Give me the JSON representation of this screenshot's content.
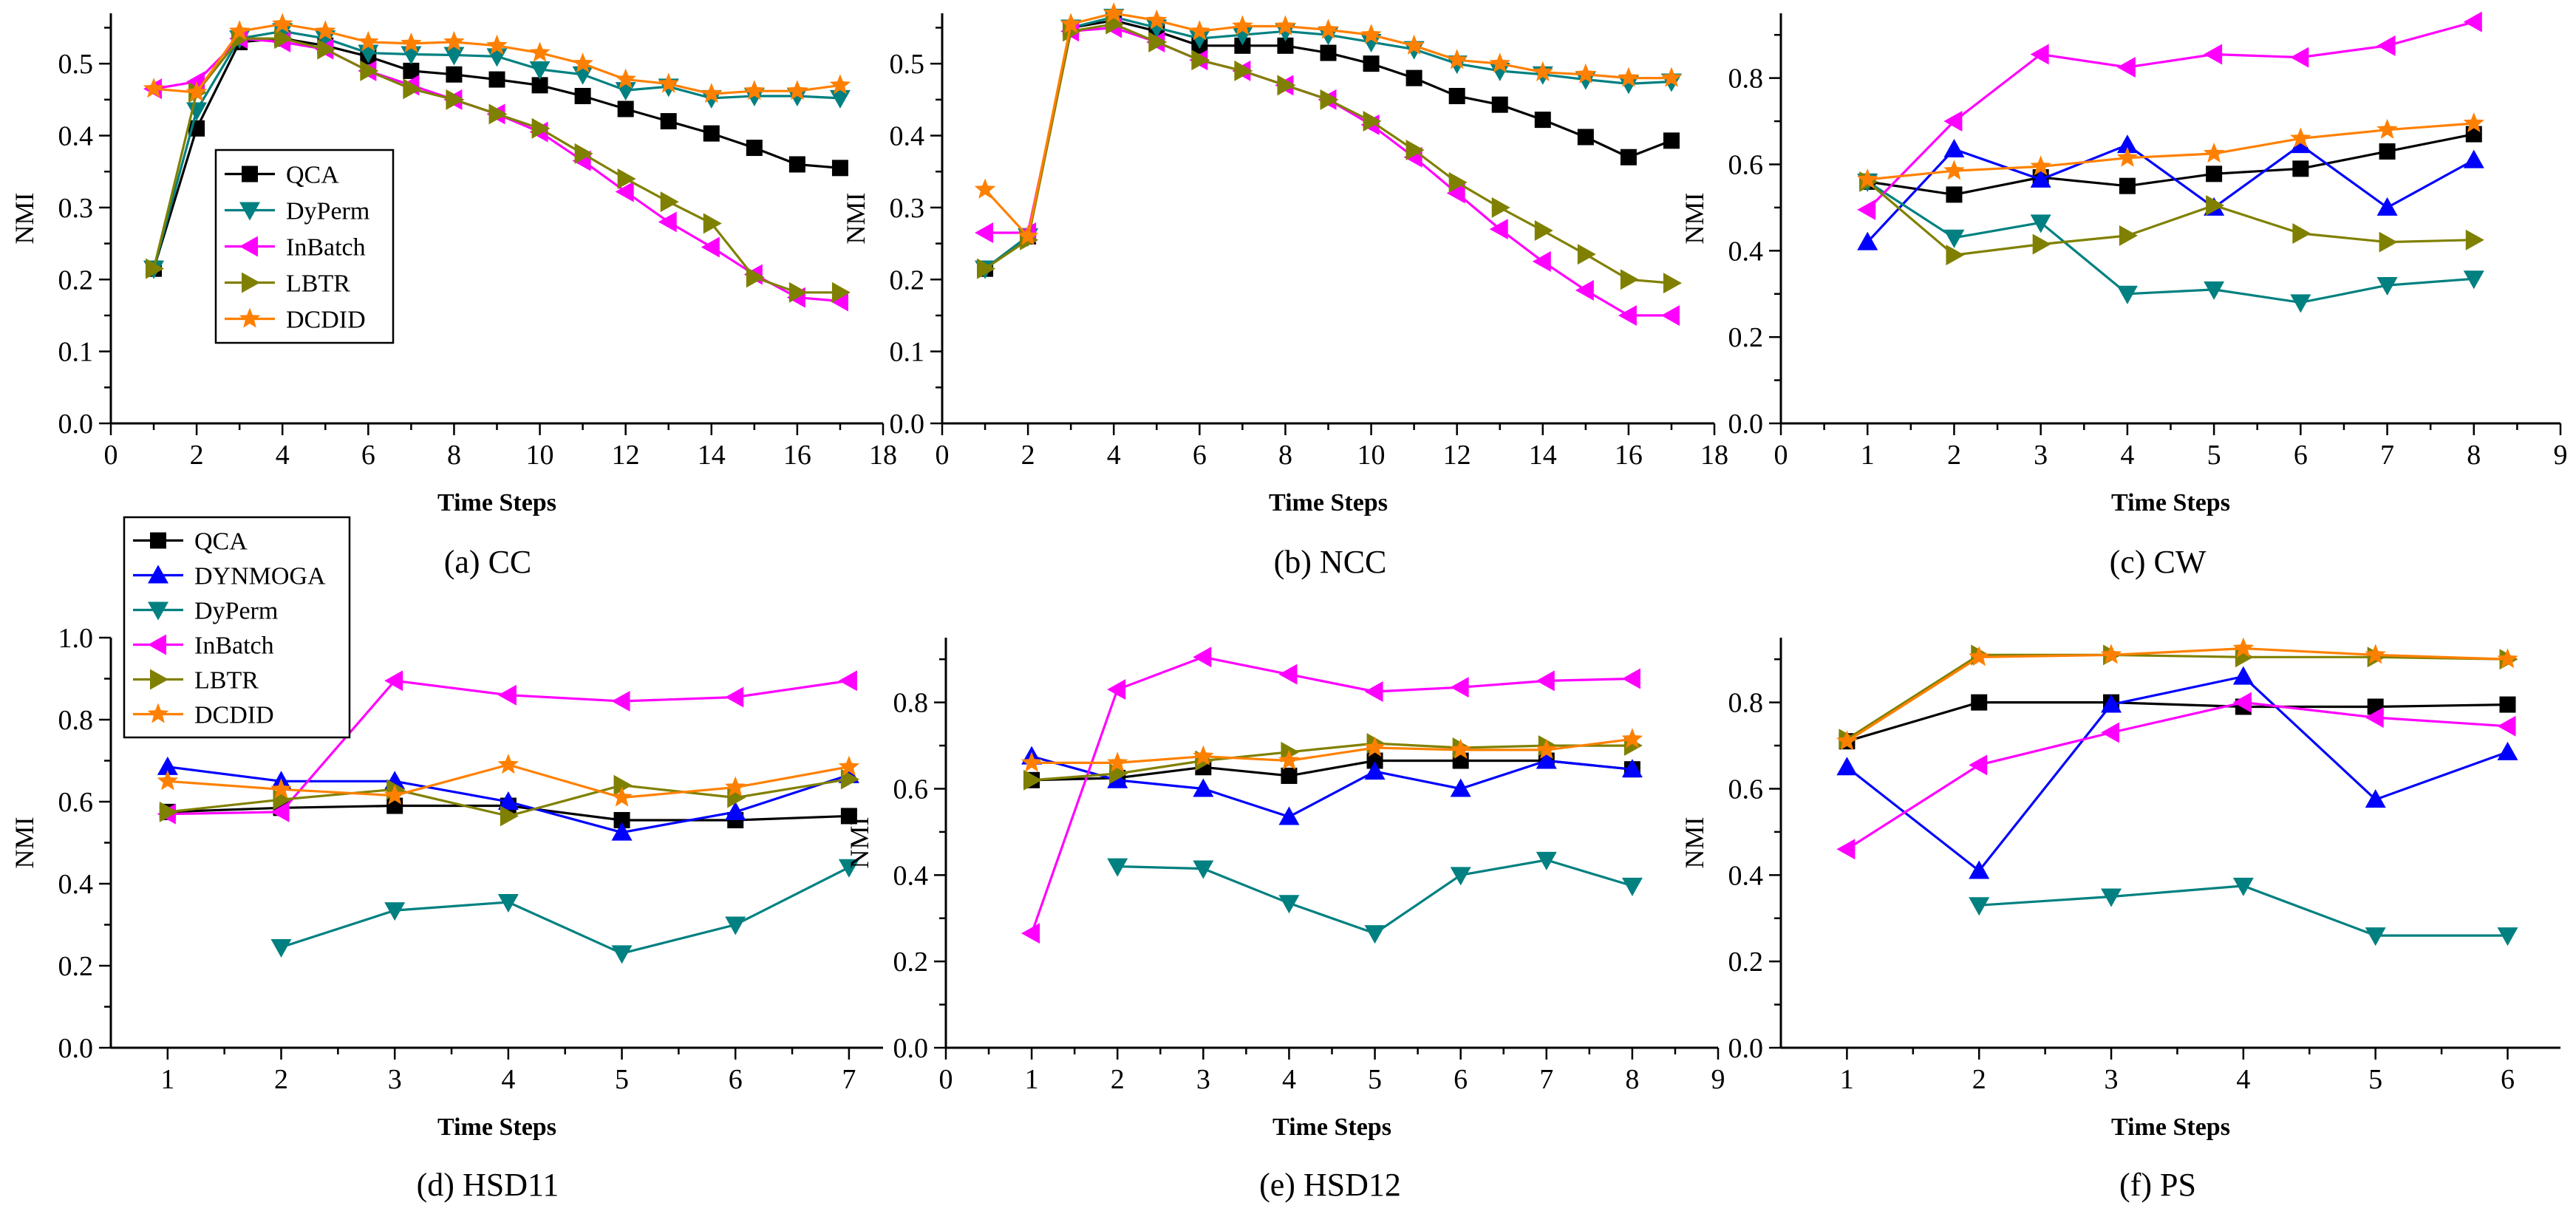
{
  "series_styles": {
    "QCA": {
      "color": "#000000",
      "marker": "square"
    },
    "DYNMOGA": {
      "color": "#0000ff",
      "marker": "triangle-up"
    },
    "DyPerm": {
      "color": "#008080",
      "marker": "triangle-down"
    },
    "InBatch": {
      "color": "#ff00ff",
      "marker": "triangle-left"
    },
    "LBTR": {
      "color": "#808000",
      "marker": "triangle-right"
    },
    "DCDID": {
      "color": "#ff8000",
      "marker": "star"
    }
  },
  "chart_data": [
    {
      "type": "line",
      "caption": "(a) CC",
      "xlabel": "Time Steps",
      "ylabel": "NMI",
      "xlim": [
        0,
        18
      ],
      "ylim": [
        0,
        0.57
      ],
      "xticks": [
        0,
        2,
        4,
        6,
        8,
        10,
        12,
        14,
        16,
        18
      ],
      "yticks": [
        0.0,
        0.1,
        0.2,
        0.3,
        0.4,
        0.5
      ],
      "x": [
        1,
        2,
        3,
        4,
        5,
        6,
        7,
        8,
        9,
        10,
        11,
        12,
        13,
        14,
        15,
        16,
        17
      ],
      "legend": {
        "placement": "inside-left",
        "entries": [
          "QCA",
          "DyPerm",
          "InBatch",
          "LBTR",
          "DCDID"
        ]
      },
      "series": [
        {
          "name": "QCA",
          "values": [
            0.215,
            0.41,
            0.53,
            0.535,
            0.525,
            0.51,
            0.49,
            0.485,
            0.478,
            0.47,
            0.455,
            0.437,
            0.42,
            0.403,
            0.383,
            0.36,
            0.355
          ]
        },
        {
          "name": "DyPerm",
          "values": [
            0.215,
            0.435,
            0.535,
            0.545,
            0.535,
            0.515,
            0.513,
            0.512,
            0.51,
            0.492,
            0.485,
            0.463,
            0.468,
            0.452,
            0.455,
            0.455,
            0.452
          ]
        },
        {
          "name": "InBatch",
          "values": [
            0.465,
            0.475,
            0.535,
            0.53,
            0.52,
            0.49,
            0.47,
            0.45,
            0.43,
            0.405,
            0.365,
            0.322,
            0.28,
            0.245,
            0.207,
            0.175,
            0.17
          ]
        },
        {
          "name": "LBTR",
          "values": [
            0.215,
            0.46,
            0.535,
            0.535,
            0.52,
            0.49,
            0.465,
            0.45,
            0.43,
            0.41,
            0.375,
            0.34,
            0.308,
            0.278,
            0.203,
            0.182,
            0.182
          ]
        },
        {
          "name": "DCDID",
          "values": [
            0.465,
            0.46,
            0.545,
            0.555,
            0.545,
            0.53,
            0.528,
            0.53,
            0.525,
            0.515,
            0.5,
            0.478,
            0.472,
            0.458,
            0.462,
            0.462,
            0.47
          ]
        }
      ]
    },
    {
      "type": "line",
      "caption": "(b) NCC",
      "xlabel": "Time Steps",
      "ylabel": "NMI",
      "xlim": [
        0,
        18
      ],
      "ylim": [
        0,
        0.57
      ],
      "xticks": [
        0,
        2,
        4,
        6,
        8,
        10,
        12,
        14,
        16,
        18
      ],
      "yticks": [
        0.0,
        0.1,
        0.2,
        0.3,
        0.4,
        0.5
      ],
      "x": [
        1,
        2,
        3,
        4,
        5,
        6,
        7,
        8,
        9,
        10,
        11,
        12,
        13,
        14,
        15,
        16,
        17
      ],
      "series": [
        {
          "name": "QCA",
          "values": [
            0.215,
            0.26,
            0.55,
            0.56,
            0.545,
            0.525,
            0.525,
            0.525,
            0.515,
            0.5,
            0.48,
            0.455,
            0.443,
            0.422,
            0.398,
            0.37,
            0.393
          ]
        },
        {
          "name": "DyPerm",
          "values": [
            0.215,
            0.26,
            0.55,
            0.565,
            0.55,
            0.535,
            0.54,
            0.545,
            0.54,
            0.53,
            0.52,
            0.5,
            0.49,
            0.485,
            0.478,
            0.472,
            0.475
          ]
        },
        {
          "name": "InBatch",
          "values": [
            0.265,
            0.265,
            0.545,
            0.55,
            0.53,
            0.505,
            0.49,
            0.47,
            0.45,
            0.415,
            0.37,
            0.32,
            0.27,
            0.225,
            0.185,
            0.15,
            0.15
          ]
        },
        {
          "name": "LBTR",
          "values": [
            0.215,
            0.255,
            0.545,
            0.555,
            0.53,
            0.505,
            0.49,
            0.47,
            0.45,
            0.42,
            0.38,
            0.335,
            0.3,
            0.268,
            0.235,
            0.2,
            0.195
          ]
        },
        {
          "name": "DCDID",
          "values": [
            0.325,
            0.26,
            0.555,
            0.57,
            0.56,
            0.545,
            0.552,
            0.552,
            0.547,
            0.54,
            0.525,
            0.505,
            0.5,
            0.488,
            0.485,
            0.48,
            0.48
          ]
        }
      ]
    },
    {
      "type": "line",
      "caption": "(c) CW",
      "xlabel": "Time Steps",
      "ylabel": "NMI",
      "xlim": [
        0,
        9
      ],
      "ylim": [
        0,
        0.95
      ],
      "xticks": [
        0,
        1,
        2,
        3,
        4,
        5,
        6,
        7,
        8,
        9
      ],
      "yticks": [
        0.0,
        0.2,
        0.4,
        0.6,
        0.8
      ],
      "x": [
        1,
        2,
        3,
        4,
        5,
        6,
        7,
        8
      ],
      "series": [
        {
          "name": "QCA",
          "values": [
            0.56,
            0.53,
            0.57,
            0.55,
            0.578,
            0.59,
            0.63,
            0.67
          ]
        },
        {
          "name": "DYNMOGA",
          "values": [
            0.42,
            0.635,
            0.565,
            0.645,
            0.5,
            0.645,
            0.5,
            0.61
          ]
        },
        {
          "name": "DyPerm",
          "values": [
            0.56,
            0.43,
            0.465,
            0.3,
            0.31,
            0.28,
            0.32,
            0.335
          ]
        },
        {
          "name": "InBatch",
          "values": [
            0.495,
            0.7,
            0.855,
            0.825,
            0.855,
            0.848,
            0.875,
            0.93
          ]
        },
        {
          "name": "LBTR",
          "values": [
            0.56,
            0.39,
            0.415,
            0.435,
            0.505,
            0.44,
            0.42,
            0.425
          ]
        },
        {
          "name": "DCDID",
          "values": [
            0.565,
            0.585,
            0.595,
            0.615,
            0.625,
            0.66,
            0.68,
            0.695
          ]
        }
      ]
    },
    {
      "type": "line",
      "caption": "(d) HSD11",
      "xlabel": "Time Steps",
      "ylabel": "NMI",
      "xlim": [
        0.5,
        7.3
      ],
      "ylim": [
        0,
        1.0
      ],
      "xticks": [
        1,
        2,
        3,
        4,
        5,
        6,
        7
      ],
      "yticks": [
        0.0,
        0.2,
        0.4,
        0.6,
        0.8,
        1.0
      ],
      "x": [
        1,
        2,
        3,
        4,
        5,
        6,
        7
      ],
      "legend": {
        "placement": "top-left",
        "entries": [
          "QCA",
          "DYNMOGA",
          "DyPerm",
          "InBatch",
          "LBTR",
          "DCDID"
        ]
      },
      "series": [
        {
          "name": "QCA",
          "values": [
            0.575,
            0.585,
            0.59,
            0.59,
            0.555,
            0.555,
            0.565
          ]
        },
        {
          "name": "DYNMOGA",
          "values": [
            0.685,
            0.65,
            0.65,
            0.6,
            0.525,
            0.575,
            0.665
          ]
        },
        {
          "name": "DyPerm",
          "x": [
            2,
            3,
            4,
            5,
            6,
            7
          ],
          "values": [
            0.245,
            0.335,
            0.355,
            0.23,
            0.3,
            0.44
          ]
        },
        {
          "name": "InBatch",
          "values": [
            0.57,
            0.575,
            0.895,
            0.86,
            0.845,
            0.855,
            0.895
          ]
        },
        {
          "name": "LBTR",
          "values": [
            0.575,
            0.605,
            0.63,
            0.565,
            0.64,
            0.61,
            0.655
          ]
        },
        {
          "name": "DCDID",
          "values": [
            0.65,
            0.63,
            0.615,
            0.69,
            0.61,
            0.635,
            0.685
          ]
        }
      ]
    },
    {
      "type": "line",
      "caption": "(e) HSD12",
      "xlabel": "Time Steps",
      "ylabel": "NMI",
      "xlim": [
        0,
        9
      ],
      "ylim": [
        0,
        0.95
      ],
      "xticks": [
        0,
        1,
        2,
        3,
        4,
        5,
        6,
        7,
        8,
        9
      ],
      "yticks": [
        0.0,
        0.2,
        0.4,
        0.6,
        0.8
      ],
      "x": [
        1,
        2,
        3,
        4,
        5,
        6,
        7,
        8
      ],
      "series": [
        {
          "name": "QCA",
          "values": [
            0.62,
            0.625,
            0.65,
            0.63,
            0.665,
            0.665,
            0.665,
            0.645
          ]
        },
        {
          "name": "DYNMOGA",
          "values": [
            0.675,
            0.62,
            0.6,
            0.535,
            0.64,
            0.6,
            0.665,
            0.645
          ]
        },
        {
          "name": "DyPerm",
          "x": [
            2,
            3,
            4,
            5,
            6,
            7,
            8
          ],
          "values": [
            0.42,
            0.415,
            0.335,
            0.265,
            0.4,
            0.435,
            0.375
          ]
        },
        {
          "name": "InBatch",
          "values": [
            0.265,
            0.83,
            0.905,
            0.865,
            0.825,
            0.835,
            0.85,
            0.855
          ]
        },
        {
          "name": "LBTR",
          "values": [
            0.62,
            0.635,
            0.665,
            0.685,
            0.705,
            0.695,
            0.7,
            0.7
          ]
        },
        {
          "name": "DCDID",
          "values": [
            0.66,
            0.66,
            0.675,
            0.665,
            0.695,
            0.69,
            0.69,
            0.715
          ]
        }
      ]
    },
    {
      "type": "line",
      "caption": "(f) PS",
      "xlabel": "Time Steps",
      "ylabel": "NMI",
      "xlim": [
        0.5,
        6.4
      ],
      "ylim": [
        0,
        0.95
      ],
      "xticks": [
        1,
        2,
        3,
        4,
        5,
        6
      ],
      "yticks": [
        0.0,
        0.2,
        0.4,
        0.6,
        0.8
      ],
      "x": [
        1,
        2,
        3,
        4,
        5,
        6
      ],
      "series": [
        {
          "name": "QCA",
          "values": [
            0.71,
            0.8,
            0.8,
            0.79,
            0.79,
            0.795
          ]
        },
        {
          "name": "DYNMOGA",
          "values": [
            0.65,
            0.41,
            0.795,
            0.86,
            0.575,
            0.685
          ]
        },
        {
          "name": "DyPerm",
          "x": [
            2,
            3,
            4,
            5,
            6
          ],
          "values": [
            0.33,
            0.35,
            0.375,
            0.26,
            0.26
          ]
        },
        {
          "name": "InBatch",
          "values": [
            0.46,
            0.655,
            0.73,
            0.8,
            0.765,
            0.745
          ]
        },
        {
          "name": "LBTR",
          "values": [
            0.715,
            0.91,
            0.91,
            0.905,
            0.905,
            0.9
          ]
        },
        {
          "name": "DCDID",
          "values": [
            0.71,
            0.905,
            0.91,
            0.925,
            0.91,
            0.9
          ]
        }
      ]
    }
  ]
}
